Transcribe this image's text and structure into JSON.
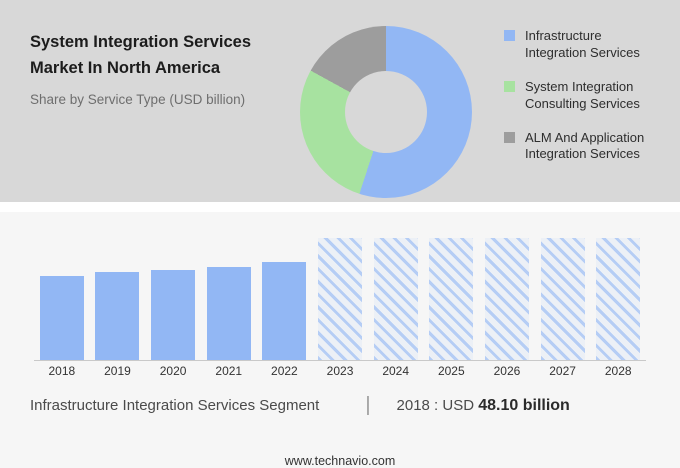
{
  "header": {
    "title": "System Integration Services Market In North America",
    "subtitle": "Share by Service Type (USD billion)"
  },
  "colors": {
    "blue": "#92b7f4",
    "green": "#a7e2a0",
    "gray": "#9d9d9d",
    "top_background": "#d8d8d8",
    "bottom_background": "#f6f6f6"
  },
  "legend": [
    {
      "label": "Infrastructure Integration Services",
      "color": "#92b7f4"
    },
    {
      "label": "System Integration Consulting Services",
      "color": "#a7e2a0"
    },
    {
      "label": "ALM And Application Integration Services",
      "color": "#9d9d9d"
    }
  ],
  "chart_data": [
    {
      "type": "pie",
      "donut": true,
      "title": "Share by Service Type (USD billion)",
      "labels": [
        "Infrastructure Integration Services",
        "System Integration Consulting Services",
        "ALM And Application Integration Services"
      ],
      "values": [
        55,
        28,
        17
      ],
      "colors": [
        "#92b7f4",
        "#a7e2a0",
        "#9d9d9d"
      ],
      "legend_position": "right"
    },
    {
      "type": "bar",
      "title": "Market size by year (USD billion)",
      "categories": [
        "2018",
        "2019",
        "2020",
        "2021",
        "2022",
        "2023",
        "2024",
        "2025",
        "2026",
        "2027",
        "2028"
      ],
      "values": [
        48.1,
        50.5,
        51.5,
        53.5,
        56.0,
        null,
        null,
        null,
        null,
        null,
        null
      ],
      "forecast": [
        false,
        false,
        false,
        false,
        false,
        true,
        true,
        true,
        true,
        true,
        true
      ],
      "bar_color": "#92b7f4",
      "xlabel": "",
      "ylabel": "",
      "ylim": [
        0,
        70
      ],
      "grid": false,
      "note": "2023-2028 shown as hatched forecast placeholders"
    }
  ],
  "footer": {
    "segment_label": "Infrastructure Integration Services Segment",
    "separator": "|",
    "stat_prefix": "2018 : USD ",
    "stat_value": "48.10 billion",
    "website": "www.technavio.com"
  }
}
